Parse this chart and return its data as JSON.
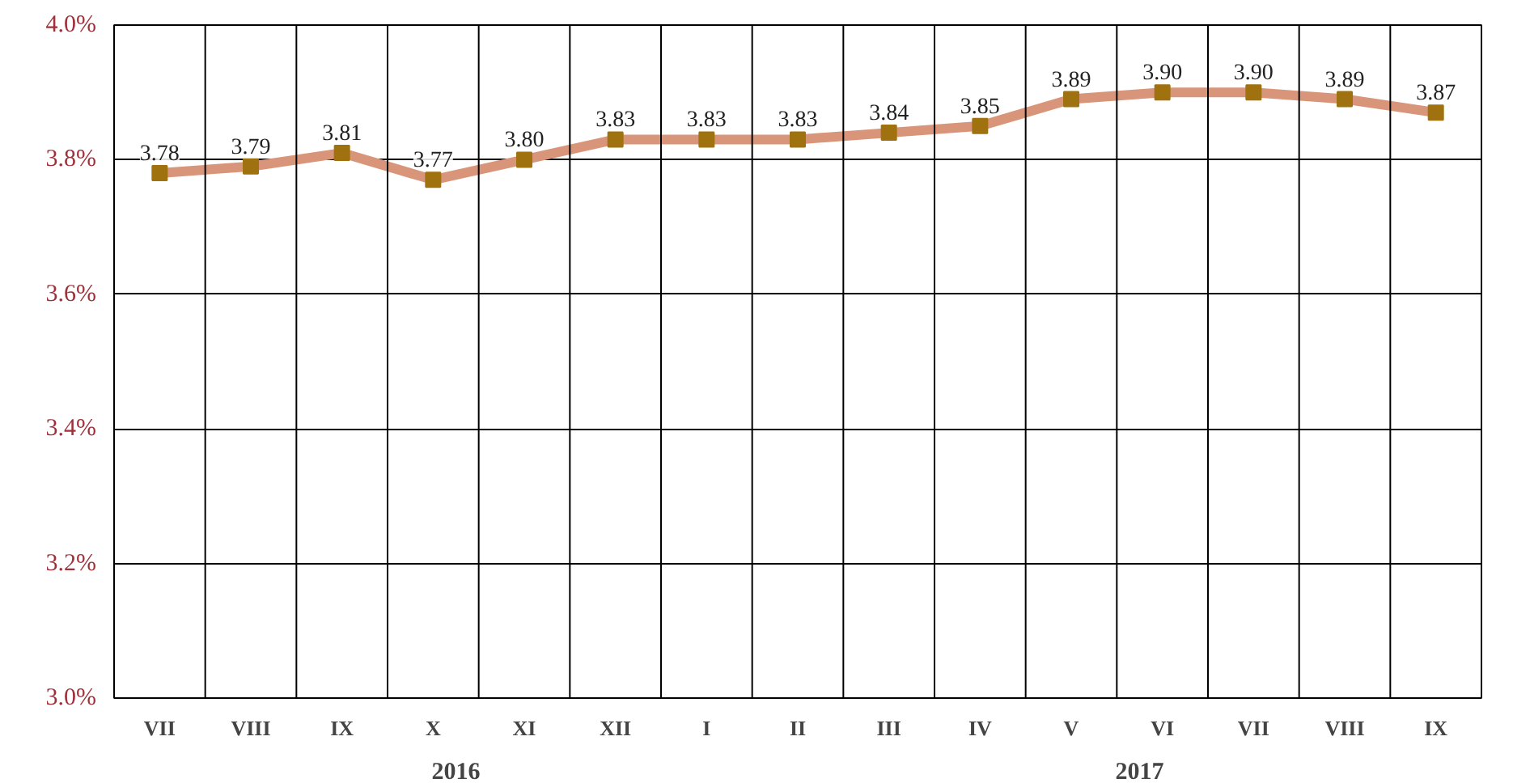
{
  "chart_data": {
    "type": "line",
    "categories": [
      "VII",
      "VIII",
      "IX",
      "X",
      "XI",
      "XII",
      "I",
      "II",
      "III",
      "IV",
      "V",
      "VI",
      "VII",
      "VIII",
      "IX"
    ],
    "series": [
      {
        "color": "#d9957a",
        "values": [
          3.78,
          3.79,
          3.81,
          3.77,
          3.8,
          3.83,
          3.83,
          3.83,
          3.84,
          3.85,
          3.89,
          3.9,
          3.9,
          3.89,
          3.87
        ],
        "value_labels": [
          "3.78",
          "3.79",
          "3.81",
          "3.77",
          "3.80",
          "3.83",
          "3.83",
          "3.83",
          "3.84",
          "3.85",
          "3.89",
          "3.90",
          "3.90",
          "3.89",
          "3.87"
        ]
      }
    ],
    "ylim": [
      3.0,
      4.0
    ],
    "yticks": [
      {
        "value": 3.0,
        "label": "3.0%"
      },
      {
        "value": 3.2,
        "label": "3.2%"
      },
      {
        "value": 3.4,
        "label": "3.4%"
      },
      {
        "value": 3.6,
        "label": "3.6%"
      },
      {
        "value": 3.8,
        "label": "3.8%"
      },
      {
        "value": 4.0,
        "label": "4.0%"
      }
    ],
    "annotations": [
      "2016",
      "2017"
    ],
    "grid": true,
    "marker": "square",
    "line_style": "solid"
  }
}
